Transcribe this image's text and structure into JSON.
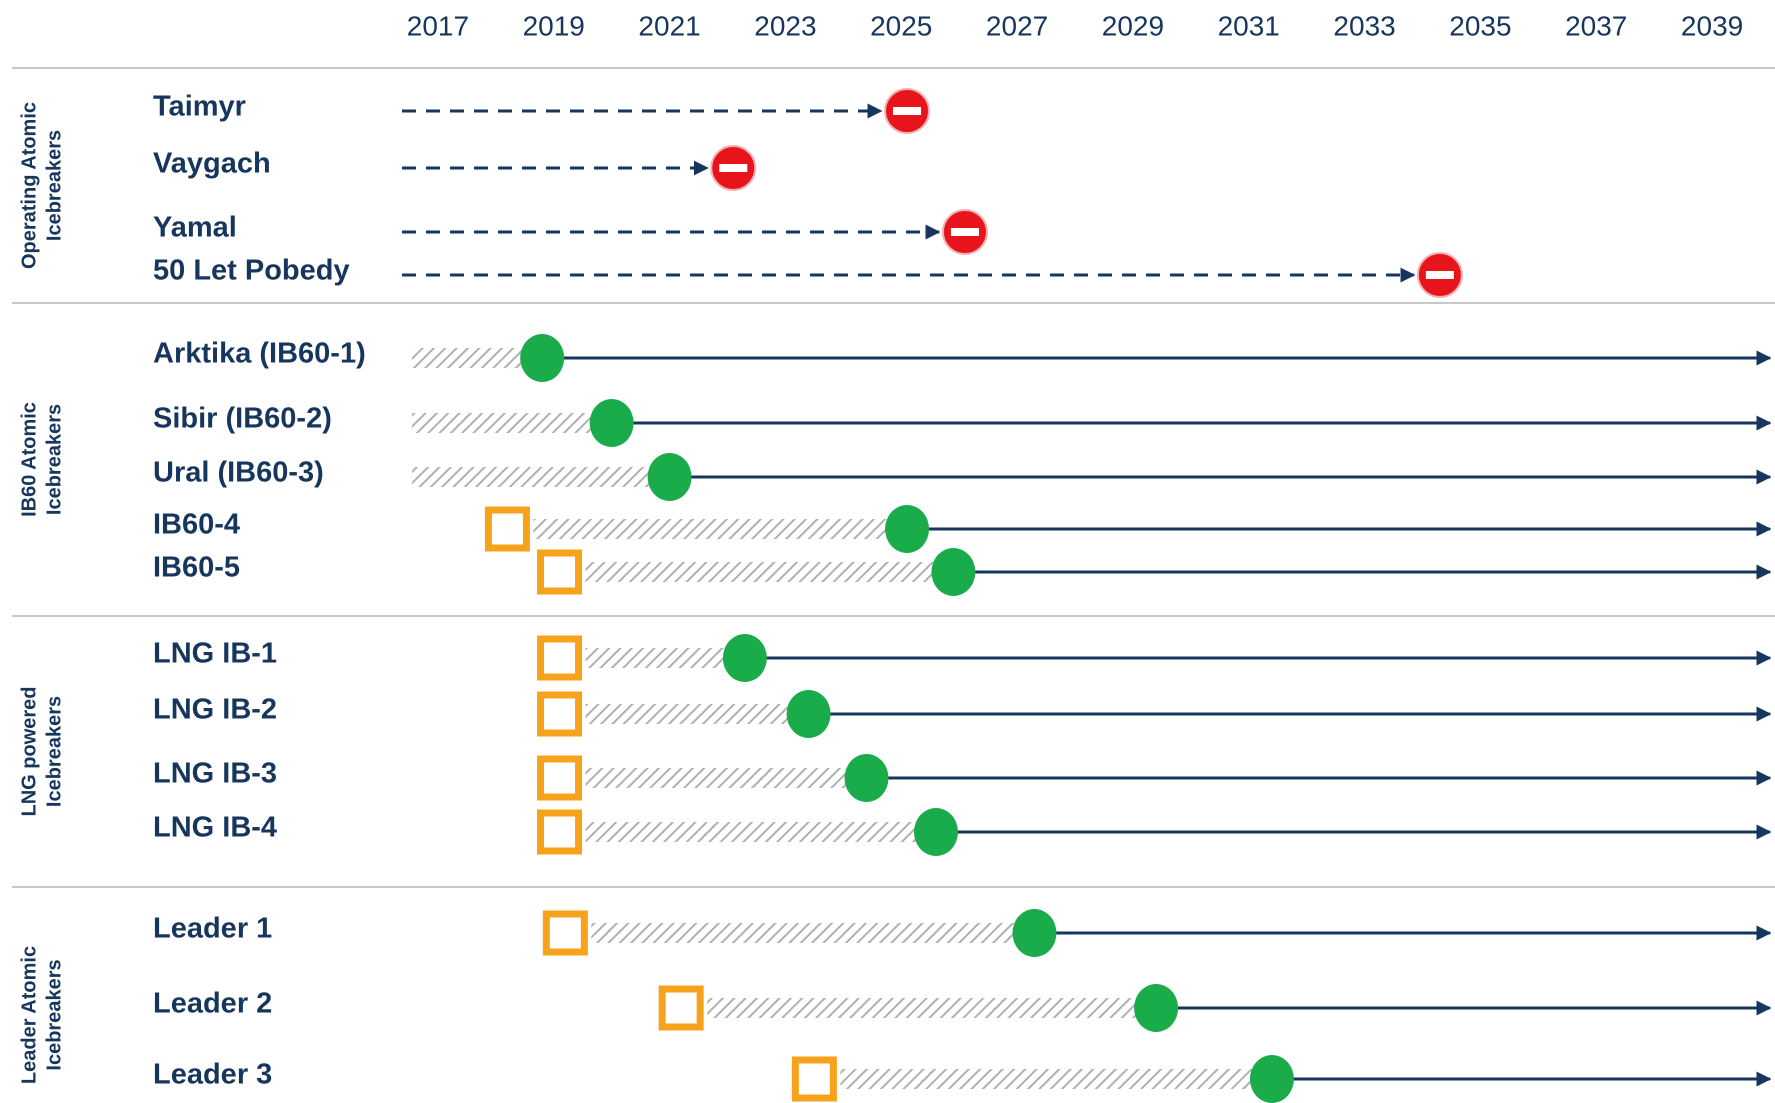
{
  "chart_data": {
    "type": "gantt",
    "xlim": [
      2016,
      2040
    ],
    "xticks": [
      2017,
      2019,
      2021,
      2023,
      2025,
      2027,
      2029,
      2031,
      2033,
      2035,
      2037,
      2039
    ],
    "colors": {
      "line": "#17365d",
      "end": "#e8141b",
      "commission": "#1aab4b",
      "start": "#f7a21b",
      "hatch": "#b0b0b0"
    },
    "groups": [
      {
        "label_lines": [
          "Operating Atomic",
          "Icebreakers"
        ],
        "rows": [
          {
            "name": "Taimyr",
            "end": 2025.1
          },
          {
            "name": "Vaygach",
            "end": 2022.1
          },
          {
            "name": "Yamal",
            "end": 2026.1
          },
          {
            "name": "50 Let Pobedy",
            "end": 2034.3
          }
        ]
      },
      {
        "label_lines": [
          "IB60 Atomic",
          "Icebreakers"
        ],
        "rows": [
          {
            "name": "Arktika (IB60-1)",
            "commission": 2018.8
          },
          {
            "name": "Sibir (IB60-2)",
            "commission": 2020.0
          },
          {
            "name": "Ural (IB60-3)",
            "commission": 2021.0
          },
          {
            "name": "IB60-4",
            "start": 2018.2,
            "commission": 2025.1
          },
          {
            "name": "IB60-5",
            "start": 2019.1,
            "commission": 2025.9
          }
        ]
      },
      {
        "label_lines": [
          "LNG powered",
          "Icebreakers"
        ],
        "rows": [
          {
            "name": "LNG IB-1",
            "start": 2019.1,
            "commission": 2022.3
          },
          {
            "name": "LNG IB-2",
            "start": 2019.1,
            "commission": 2023.4
          },
          {
            "name": "LNG IB-3",
            "start": 2019.1,
            "commission": 2024.4
          },
          {
            "name": "LNG IB-4",
            "start": 2019.1,
            "commission": 2025.6
          }
        ]
      },
      {
        "label_lines": [
          "Leader Atomic",
          "Icebreakers"
        ],
        "rows": [
          {
            "name": "Leader 1",
            "start": 2019.2,
            "commission": 2027.3
          },
          {
            "name": "Leader 2",
            "start": 2021.2,
            "commission": 2029.4
          },
          {
            "name": "Leader 3",
            "start": 2023.5,
            "commission": 2031.4
          }
        ]
      }
    ]
  }
}
